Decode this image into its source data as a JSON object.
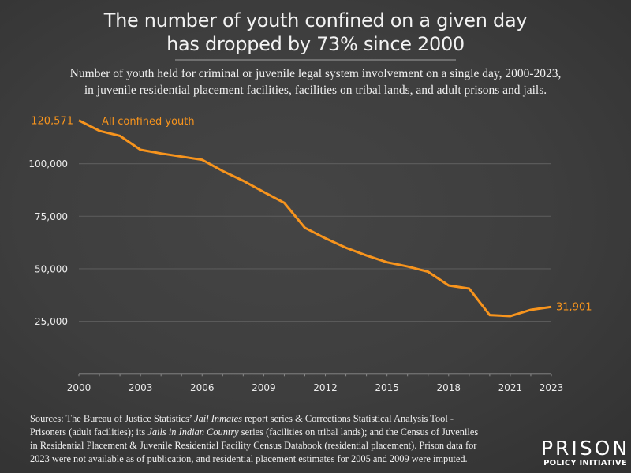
{
  "header": {
    "title_lines": [
      "The number of youth confined on a given day",
      "has dropped by 73% since 2000"
    ],
    "subtitle_lines": [
      "Number of youth held for criminal or juvenile legal system involvement on a single day, 2000-2023,",
      "in juvenile residential placement facilities, facilities on tribal lands, and adult prisons and jails."
    ]
  },
  "chart_data": {
    "type": "line",
    "title": "The number of youth confined on a given day has dropped by 73% since 2000",
    "subtitle": "Number of youth held for criminal or juvenile legal system involvement on a single day, 2000-2023, in juvenile residential placement facilities, facilities on tribal lands, and adult prisons and jails.",
    "xlabel": "",
    "ylabel": "",
    "x": [
      2000,
      2001,
      2002,
      2003,
      2004,
      2005,
      2006,
      2007,
      2008,
      2009,
      2010,
      2011,
      2012,
      2013,
      2014,
      2015,
      2016,
      2017,
      2018,
      2019,
      2020,
      2021,
      2022,
      2023
    ],
    "series": [
      {
        "name": "All confined youth",
        "color": "#f7941d",
        "values": [
          120571,
          115600,
          113200,
          106600,
          104850,
          103350,
          101850,
          96500,
          91850,
          86500,
          81350,
          69500,
          64500,
          60000,
          56350,
          53100,
          51100,
          48600,
          42100,
          40600,
          28000,
          27500,
          30500,
          31901
        ]
      }
    ],
    "xlim": [
      2000,
      2023
    ],
    "ylim": [
      0,
      120571
    ],
    "x_ticks": [
      2000,
      2001,
      2002,
      2003,
      2004,
      2005,
      2006,
      2007,
      2008,
      2009,
      2010,
      2011,
      2012,
      2013,
      2014,
      2015,
      2016,
      2017,
      2018,
      2019,
      2020,
      2021,
      2022,
      2023
    ],
    "x_tick_labels": [
      "2000",
      "2003",
      "2006",
      "2009",
      "2012",
      "2015",
      "2018",
      "2021",
      "2023"
    ],
    "x_tick_label_values": [
      2000,
      2003,
      2006,
      2009,
      2012,
      2015,
      2018,
      2021,
      2023
    ],
    "y_ticks": [
      25000,
      50000,
      75000,
      100000
    ],
    "y_tick_labels": [
      "25,000",
      "50,000",
      "75,000",
      "100,000"
    ],
    "grid": "horizontal",
    "annotations": [
      {
        "text": "120,571",
        "x": 2000,
        "y": 120571,
        "position": "left"
      },
      {
        "text": "31,901",
        "x": 2023,
        "y": 31901,
        "position": "right"
      },
      {
        "text": "All confined youth",
        "position": "top-left",
        "role": "series-label"
      }
    ]
  },
  "footer": {
    "source_lines": [
      [
        {
          "t": "Sources: The Bureau of Justice Statistics’ "
        },
        {
          "t": "Jail Inmates",
          "i": true
        },
        {
          "t": " report series & Corrections Statistical Analysis Tool -"
        }
      ],
      [
        {
          "t": "Prisoners (adult facilities); its "
        },
        {
          "t": "Jails in Indian Country",
          "i": true
        },
        {
          "t": " series (facilities on tribal lands); and the Census of Juveniles"
        }
      ],
      [
        {
          "t": "in Residential Placement & Juvenile Residential Facility Census Databook (residential placement). Prison data for"
        }
      ],
      [
        {
          "t": "2023 were not available as of publication, and residential placement estimates for 2005 and 2009 were imputed."
        }
      ]
    ]
  },
  "logo": {
    "line1": "PRISON",
    "line2": "POLICY INITIATIVE"
  },
  "colors": {
    "accent": "#f7941d",
    "text": "#f0f0f0",
    "grid": "#5a5a5a",
    "axis": "#8a8a8a",
    "divider": "#8c8c8c"
  }
}
